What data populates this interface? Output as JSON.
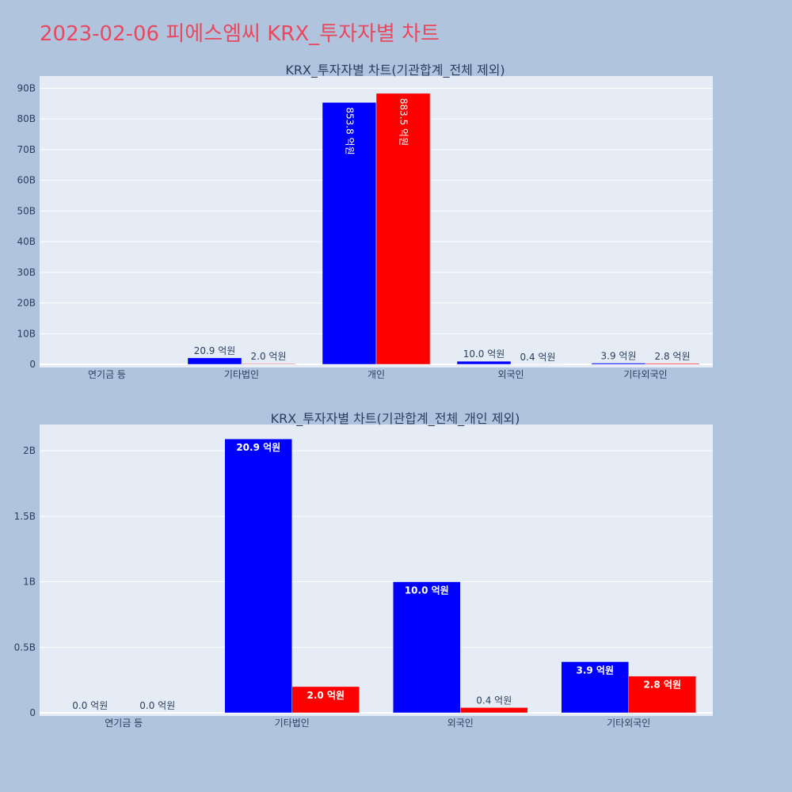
{
  "page_title": "2023-02-06 피에스엠씨 KRX_투자자별 차트",
  "colors": {
    "series1": "#0000ff",
    "series2": "#ff0000",
    "title": "#e8495f",
    "page_bg": "#b0c4de",
    "plot_bg": "#e5ecf6"
  },
  "chart_data": [
    {
      "type": "bar",
      "title": "KRX_투자자별 차트(기관합계_전체 제외)",
      "categories": [
        "연기금 등",
        "기타법인",
        "개인",
        "외국인",
        "기타외국인"
      ],
      "series": [
        {
          "values": [
            0,
            2090000000,
            85380000000,
            1000000000,
            390000000
          ],
          "labels": [
            "",
            "20.9 억원",
            "853.8 억원",
            "10.0 억원",
            "3.9 억원"
          ]
        },
        {
          "values": [
            0,
            200000000,
            88350000000,
            40000000,
            280000000
          ],
          "labels": [
            "",
            "2.0 억원",
            "883.5 억원",
            "0.4 억원",
            "2.8 억원"
          ]
        }
      ],
      "yticks": [
        0,
        10000000000,
        20000000000,
        30000000000,
        40000000000,
        50000000000,
        60000000000,
        70000000000,
        80000000000,
        90000000000
      ],
      "ytick_labels": [
        "0",
        "10B",
        "20B",
        "30B",
        "40B",
        "50B",
        "60B",
        "70B",
        "80B",
        "90B"
      ],
      "ylim": [
        0,
        94000000000
      ],
      "grid": true
    },
    {
      "type": "bar",
      "title": "KRX_투자자별 차트(기관합계_전체_개인 제외)",
      "categories": [
        "연기금 등",
        "기타법인",
        "외국인",
        "기타외국인"
      ],
      "series": [
        {
          "values": [
            0,
            2090000000,
            1000000000,
            390000000
          ],
          "labels": [
            "0.0 억원",
            "20.9 억원",
            "10.0 억원",
            "3.9 억원"
          ]
        },
        {
          "values": [
            0,
            200000000,
            40000000,
            280000000
          ],
          "labels": [
            "0.0 억원",
            "2.0 억원",
            "0.4 억원",
            "2.8 억원"
          ]
        }
      ],
      "yticks": [
        0,
        500000000,
        1000000000,
        1500000000,
        2000000000
      ],
      "ytick_labels": [
        "0",
        "0.5B",
        "1B",
        "1.5B",
        "2B"
      ],
      "ylim": [
        0,
        2200000000
      ],
      "grid": true
    }
  ]
}
